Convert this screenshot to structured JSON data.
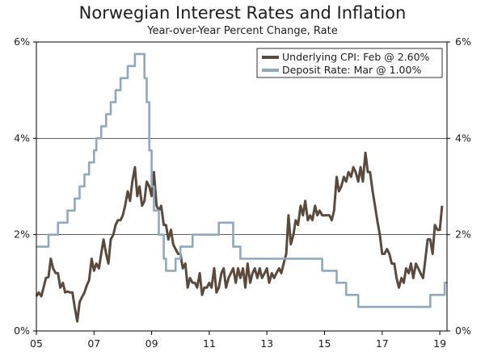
{
  "chart_data": {
    "type": "line",
    "title": "Norwegian Interest Rates and Inflation",
    "subtitle": "Year-over-Year Percent Change, Rate",
    "xlabel": "",
    "ylabel": "",
    "xlim": [
      2005.0,
      2019.25
    ],
    "ylim": [
      0,
      6
    ],
    "x_ticks": [
      2005,
      2007,
      2009,
      2011,
      2013,
      2015,
      2017,
      2019
    ],
    "x_tick_labels": [
      "05",
      "07",
      "09",
      "11",
      "13",
      "15",
      "17",
      "19"
    ],
    "y_ticks": [
      0,
      2,
      4,
      6
    ],
    "y_tick_labels_left": [
      "0%",
      "2%",
      "4%",
      "6%"
    ],
    "y_tick_labels_right": [
      "0%",
      "2%",
      "4%",
      "6%"
    ],
    "legend": {
      "position": "top-right",
      "entries": [
        "Underlying CPI: Feb @ 2.60%",
        "Deposit Rate: Mar @ 1.00%"
      ]
    },
    "series": [
      {
        "name": "Underlying CPI: Feb @ 2.60%",
        "color": "#5a4a3e",
        "points": [
          [
            2005.0,
            0.72
          ],
          [
            2005.08,
            0.8
          ],
          [
            2005.17,
            0.72
          ],
          [
            2005.25,
            0.9
          ],
          [
            2005.33,
            1.1
          ],
          [
            2005.42,
            1.12
          ],
          [
            2005.5,
            1.5
          ],
          [
            2005.58,
            1.3
          ],
          [
            2005.67,
            1.2
          ],
          [
            2005.75,
            1.2
          ],
          [
            2005.83,
            0.9
          ],
          [
            2005.92,
            1.0
          ],
          [
            2006.0,
            0.8
          ],
          [
            2006.08,
            0.82
          ],
          [
            2006.17,
            0.8
          ],
          [
            2006.25,
            0.8
          ],
          [
            2006.33,
            0.5
          ],
          [
            2006.42,
            0.2
          ],
          [
            2006.5,
            0.6
          ],
          [
            2006.58,
            0.7
          ],
          [
            2006.67,
            0.8
          ],
          [
            2006.75,
            0.95
          ],
          [
            2006.83,
            1.05
          ],
          [
            2006.92,
            1.5
          ],
          [
            2007.0,
            1.25
          ],
          [
            2007.08,
            1.4
          ],
          [
            2007.17,
            1.3
          ],
          [
            2007.25,
            1.6
          ],
          [
            2007.33,
            1.9
          ],
          [
            2007.42,
            1.6
          ],
          [
            2007.5,
            1.4
          ],
          [
            2007.58,
            1.9
          ],
          [
            2007.67,
            2.0
          ],
          [
            2007.75,
            2.2
          ],
          [
            2007.83,
            2.3
          ],
          [
            2007.92,
            2.3
          ],
          [
            2008.0,
            2.4
          ],
          [
            2008.08,
            2.6
          ],
          [
            2008.17,
            2.9
          ],
          [
            2008.25,
            2.7
          ],
          [
            2008.33,
            3.1
          ],
          [
            2008.42,
            3.4
          ],
          [
            2008.5,
            2.8
          ],
          [
            2008.58,
            3.0
          ],
          [
            2008.67,
            2.6
          ],
          [
            2008.75,
            2.7
          ],
          [
            2008.83,
            3.1
          ],
          [
            2008.92,
            3.0
          ],
          [
            2009.0,
            2.8
          ],
          [
            2009.08,
            3.3
          ],
          [
            2009.17,
            2.6
          ],
          [
            2009.25,
            2.5
          ],
          [
            2009.33,
            2.6
          ],
          [
            2009.42,
            2.2
          ],
          [
            2009.5,
            2.2
          ],
          [
            2009.58,
            1.9
          ],
          [
            2009.67,
            2.1
          ],
          [
            2009.75,
            1.8
          ],
          [
            2009.83,
            1.7
          ],
          [
            2009.92,
            1.6
          ],
          [
            2010.0,
            1.6
          ],
          [
            2010.08,
            1.3
          ],
          [
            2010.17,
            1.4
          ],
          [
            2010.25,
            0.9
          ],
          [
            2010.33,
            1.1
          ],
          [
            2010.42,
            1.0
          ],
          [
            2010.5,
            1.0
          ],
          [
            2010.58,
            0.9
          ],
          [
            2010.67,
            1.2
          ],
          [
            2010.75,
            0.75
          ],
          [
            2010.83,
            0.9
          ],
          [
            2010.92,
            0.9
          ],
          [
            2011.0,
            1.0
          ],
          [
            2011.08,
            0.9
          ],
          [
            2011.17,
            1.3
          ],
          [
            2011.25,
            0.8
          ],
          [
            2011.33,
            0.9
          ],
          [
            2011.42,
            1.2
          ],
          [
            2011.5,
            1.3
          ],
          [
            2011.58,
            0.9
          ],
          [
            2011.67,
            1.1
          ],
          [
            2011.75,
            1.2
          ],
          [
            2011.83,
            1.3
          ],
          [
            2011.92,
            1.0
          ],
          [
            2012.0,
            1.3
          ],
          [
            2012.08,
            1.1
          ],
          [
            2012.17,
            1.3
          ],
          [
            2012.25,
            0.9
          ],
          [
            2012.33,
            1.4
          ],
          [
            2012.42,
            1.0
          ],
          [
            2012.5,
            1.2
          ],
          [
            2012.58,
            1.3
          ],
          [
            2012.67,
            1.1
          ],
          [
            2012.75,
            1.3
          ],
          [
            2012.83,
            1.1
          ],
          [
            2012.92,
            1.2
          ],
          [
            2013.0,
            1.3
          ],
          [
            2013.08,
            1.0
          ],
          [
            2013.17,
            1.2
          ],
          [
            2013.25,
            1.1
          ],
          [
            2013.33,
            1.2
          ],
          [
            2013.42,
            1.3
          ],
          [
            2013.5,
            1.2
          ],
          [
            2013.58,
            1.4
          ],
          [
            2013.67,
            1.6
          ],
          [
            2013.75,
            2.4
          ],
          [
            2013.83,
            1.8
          ],
          [
            2013.92,
            2.0
          ],
          [
            2014.0,
            2.3
          ],
          [
            2014.08,
            2.2
          ],
          [
            2014.17,
            2.6
          ],
          [
            2014.25,
            2.4
          ],
          [
            2014.33,
            2.7
          ],
          [
            2014.42,
            2.3
          ],
          [
            2014.5,
            2.4
          ],
          [
            2014.58,
            2.3
          ],
          [
            2014.67,
            2.6
          ],
          [
            2014.75,
            2.4
          ],
          [
            2014.83,
            2.5
          ],
          [
            2014.92,
            2.4
          ],
          [
            2015.0,
            2.4
          ],
          [
            2015.08,
            2.4
          ],
          [
            2015.17,
            2.4
          ],
          [
            2015.25,
            2.3
          ],
          [
            2015.33,
            2.5
          ],
          [
            2015.42,
            3.2
          ],
          [
            2015.5,
            2.9
          ],
          [
            2015.58,
            3.0
          ],
          [
            2015.67,
            3.2
          ],
          [
            2015.75,
            3.1
          ],
          [
            2015.83,
            3.3
          ],
          [
            2015.92,
            3.2
          ],
          [
            2016.0,
            3.4
          ],
          [
            2016.08,
            3.3
          ],
          [
            2016.17,
            3.1
          ],
          [
            2016.25,
            3.4
          ],
          [
            2016.33,
            3.1
          ],
          [
            2016.42,
            3.7
          ],
          [
            2016.5,
            3.3
          ],
          [
            2016.58,
            3.3
          ],
          [
            2016.67,
            2.9
          ],
          [
            2016.75,
            2.6
          ],
          [
            2016.83,
            2.3
          ],
          [
            2016.92,
            2.0
          ],
          [
            2017.0,
            1.6
          ],
          [
            2017.08,
            1.6
          ],
          [
            2017.17,
            1.7
          ],
          [
            2017.25,
            1.6
          ],
          [
            2017.33,
            1.4
          ],
          [
            2017.42,
            1.4
          ],
          [
            2017.5,
            1.1
          ],
          [
            2017.58,
            0.9
          ],
          [
            2017.67,
            1.1
          ],
          [
            2017.75,
            1.0
          ],
          [
            2017.83,
            1.3
          ],
          [
            2017.92,
            1.2
          ],
          [
            2018.0,
            1.4
          ],
          [
            2018.08,
            1.1
          ],
          [
            2018.17,
            1.4
          ],
          [
            2018.25,
            1.3
          ],
          [
            2018.33,
            1.2
          ],
          [
            2018.42,
            1.1
          ],
          [
            2018.5,
            1.5
          ],
          [
            2018.58,
            1.9
          ],
          [
            2018.67,
            1.9
          ],
          [
            2018.75,
            1.6
          ],
          [
            2018.83,
            2.2
          ],
          [
            2018.92,
            2.1
          ],
          [
            2019.0,
            2.1
          ],
          [
            2019.08,
            2.6
          ]
        ]
      },
      {
        "name": "Deposit Rate: Mar @ 1.00%",
        "color": "#8fa9bb",
        "points": [
          [
            2005.0,
            1.75
          ],
          [
            2005.42,
            1.75
          ],
          [
            2005.42,
            2.0
          ],
          [
            2005.75,
            2.0
          ],
          [
            2005.75,
            2.25
          ],
          [
            2006.08,
            2.25
          ],
          [
            2006.08,
            2.5
          ],
          [
            2006.33,
            2.5
          ],
          [
            2006.33,
            2.75
          ],
          [
            2006.5,
            2.75
          ],
          [
            2006.5,
            3.0
          ],
          [
            2006.67,
            3.0
          ],
          [
            2006.67,
            3.25
          ],
          [
            2006.83,
            3.25
          ],
          [
            2006.83,
            3.5
          ],
          [
            2007.0,
            3.5
          ],
          [
            2007.0,
            3.75
          ],
          [
            2007.08,
            3.75
          ],
          [
            2007.08,
            4.0
          ],
          [
            2007.25,
            4.0
          ],
          [
            2007.25,
            4.25
          ],
          [
            2007.42,
            4.25
          ],
          [
            2007.42,
            4.5
          ],
          [
            2007.58,
            4.5
          ],
          [
            2007.58,
            4.75
          ],
          [
            2007.75,
            4.75
          ],
          [
            2007.75,
            5.0
          ],
          [
            2007.92,
            5.0
          ],
          [
            2007.92,
            5.25
          ],
          [
            2008.17,
            5.25
          ],
          [
            2008.17,
            5.5
          ],
          [
            2008.42,
            5.5
          ],
          [
            2008.42,
            5.75
          ],
          [
            2008.75,
            5.75
          ],
          [
            2008.75,
            5.25
          ],
          [
            2008.83,
            5.25
          ],
          [
            2008.83,
            4.75
          ],
          [
            2008.92,
            4.75
          ],
          [
            2008.92,
            3.75
          ],
          [
            2009.0,
            3.75
          ],
          [
            2009.0,
            3.0
          ],
          [
            2009.08,
            3.0
          ],
          [
            2009.08,
            2.5
          ],
          [
            2009.25,
            2.5
          ],
          [
            2009.25,
            2.0
          ],
          [
            2009.42,
            2.0
          ],
          [
            2009.42,
            1.5
          ],
          [
            2009.5,
            1.5
          ],
          [
            2009.5,
            1.25
          ],
          [
            2009.83,
            1.25
          ],
          [
            2009.83,
            1.5
          ],
          [
            2010.0,
            1.5
          ],
          [
            2010.0,
            1.75
          ],
          [
            2010.42,
            1.75
          ],
          [
            2010.42,
            2.0
          ],
          [
            2011.33,
            2.0
          ],
          [
            2011.33,
            2.25
          ],
          [
            2011.83,
            2.25
          ],
          [
            2011.83,
            1.75
          ],
          [
            2012.08,
            1.75
          ],
          [
            2012.08,
            1.5
          ],
          [
            2014.92,
            1.5
          ],
          [
            2014.92,
            1.25
          ],
          [
            2015.42,
            1.25
          ],
          [
            2015.42,
            1.0
          ],
          [
            2015.75,
            1.0
          ],
          [
            2015.75,
            0.75
          ],
          [
            2016.17,
            0.75
          ],
          [
            2016.17,
            0.5
          ],
          [
            2018.67,
            0.5
          ],
          [
            2018.67,
            0.75
          ],
          [
            2019.17,
            0.75
          ],
          [
            2019.17,
            1.0
          ],
          [
            2019.25,
            1.0
          ]
        ]
      }
    ]
  }
}
